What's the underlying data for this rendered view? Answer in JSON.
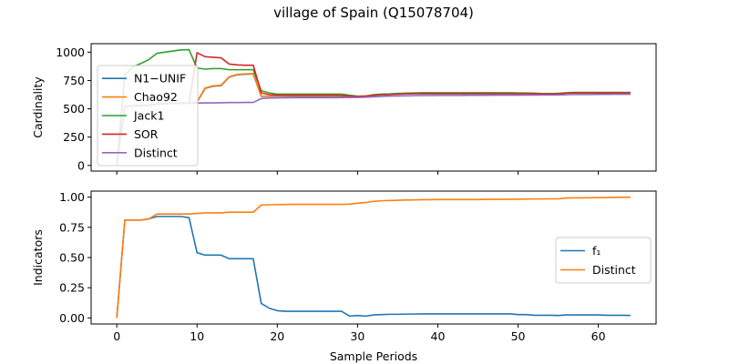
{
  "figure": {
    "title": "village of Spain (Q15078704)"
  },
  "chart_data": [
    {
      "type": "line",
      "ylabel": "Cardinality",
      "xlabel": "",
      "xlim": [
        -3.2,
        67.2
      ],
      "ylim": [
        -50,
        1075
      ],
      "xticks": [
        0,
        10,
        20,
        30,
        40,
        50,
        60
      ],
      "yticks": [
        0,
        250,
        500,
        750,
        1000
      ],
      "ytick_labels": [
        "0",
        "250",
        "500",
        "750",
        "1000"
      ],
      "legend_position": "upper-left",
      "x": [
        0,
        1,
        2,
        3,
        4,
        5,
        6,
        7,
        8,
        9,
        10,
        11,
        12,
        13,
        14,
        15,
        16,
        17,
        18,
        19,
        20,
        21,
        22,
        23,
        24,
        25,
        26,
        27,
        28,
        29,
        30,
        31,
        32,
        33,
        34,
        35,
        36,
        37,
        38,
        39,
        40,
        41,
        42,
        43,
        44,
        45,
        46,
        47,
        48,
        49,
        50,
        51,
        52,
        53,
        54,
        55,
        56,
        57,
        58,
        59,
        60,
        61,
        62,
        63,
        64
      ],
      "series": [
        {
          "name": "N1−UNIF",
          "color": "#1f77b4",
          "values": [
            2,
            520,
            525,
            528,
            530,
            540,
            545,
            548,
            548,
            550,
            560,
            680,
            700,
            705,
            780,
            800,
            805,
            808,
            610,
            610,
            612,
            612,
            612,
            612,
            612,
            612,
            612,
            612,
            612,
            608,
            608,
            612,
            620,
            622,
            625,
            628,
            630,
            632,
            632,
            632,
            632,
            632,
            632,
            632,
            632,
            632,
            632,
            632,
            632,
            632,
            632,
            632,
            632,
            632,
            632,
            635,
            638,
            640,
            640,
            640,
            640,
            640,
            640,
            640,
            640
          ]
        },
        {
          "name": "Chao92",
          "color": "#ff7f0e",
          "values": [
            2,
            522,
            527,
            530,
            532,
            542,
            547,
            550,
            550,
            552,
            562,
            683,
            703,
            708,
            783,
            803,
            808,
            810,
            612,
            612,
            614,
            614,
            614,
            614,
            614,
            614,
            614,
            614,
            614,
            610,
            610,
            614,
            622,
            624,
            627,
            630,
            632,
            634,
            634,
            634,
            634,
            634,
            634,
            634,
            634,
            634,
            634,
            634,
            634,
            634,
            634,
            634,
            634,
            634,
            634,
            637,
            640,
            642,
            642,
            642,
            642,
            642,
            642,
            642,
            642
          ]
        },
        {
          "name": "Jack1",
          "color": "#2ca02c",
          "values": [
            2,
            800,
            870,
            900,
            935,
            990,
            1000,
            1010,
            1020,
            1022,
            860,
            850,
            855,
            855,
            845,
            845,
            845,
            845,
            660,
            640,
            630,
            630,
            630,
            630,
            630,
            630,
            630,
            630,
            630,
            620,
            612,
            612,
            625,
            630,
            632,
            636,
            638,
            640,
            642,
            642,
            642,
            642,
            642,
            642,
            642,
            642,
            642,
            642,
            642,
            642,
            640,
            640,
            638,
            635,
            635,
            636,
            642,
            645,
            645,
            645,
            645,
            645,
            645,
            645,
            645
          ]
        },
        {
          "name": "SOR",
          "color": "#d62728",
          "values": [
            2,
            520,
            525,
            528,
            530,
            540,
            545,
            548,
            548,
            550,
            995,
            960,
            955,
            950,
            895,
            888,
            885,
            885,
            640,
            625,
            620,
            620,
            620,
            620,
            620,
            620,
            620,
            620,
            618,
            612,
            610,
            612,
            620,
            624,
            626,
            630,
            634,
            635,
            635,
            635,
            635,
            635,
            635,
            635,
            635,
            635,
            635,
            635,
            635,
            635,
            635,
            635,
            635,
            632,
            632,
            632,
            638,
            640,
            640,
            640,
            640,
            640,
            640,
            640,
            640
          ]
        },
        {
          "name": "Distinct",
          "color": "#9467bd",
          "values": [
            2,
            520,
            525,
            528,
            530,
            540,
            545,
            548,
            548,
            550,
            550,
            552,
            552,
            553,
            555,
            555,
            556,
            556,
            590,
            595,
            596,
            597,
            598,
            598,
            598,
            598,
            598,
            598,
            599,
            600,
            600,
            602,
            606,
            609,
            612,
            613,
            614,
            616,
            617,
            617,
            618,
            618,
            618,
            618,
            619,
            619,
            619,
            620,
            620,
            620,
            620,
            621,
            621,
            622,
            622,
            622,
            624,
            626,
            626,
            626,
            627,
            627,
            628,
            628,
            628
          ]
        }
      ]
    },
    {
      "type": "line",
      "ylabel": "Indicators",
      "xlabel": "Sample Periods",
      "xlim": [
        -3.2,
        67.2
      ],
      "ylim": [
        -0.05,
        1.05
      ],
      "xticks": [
        0,
        10,
        20,
        30,
        40,
        50,
        60
      ],
      "yticks": [
        0,
        0.25,
        0.5,
        0.75,
        1.0
      ],
      "ytick_labels": [
        "0.00",
        "0.25",
        "0.50",
        "0.75",
        "1.00"
      ],
      "xtick_labels": [
        "0",
        "10",
        "20",
        "30",
        "40",
        "50",
        "60"
      ],
      "legend_position": "center-right",
      "x": [
        0,
        1,
        2,
        3,
        4,
        5,
        6,
        7,
        8,
        9,
        10,
        11,
        12,
        13,
        14,
        15,
        16,
        17,
        18,
        19,
        20,
        21,
        22,
        23,
        24,
        25,
        26,
        27,
        28,
        29,
        30,
        31,
        32,
        33,
        34,
        35,
        36,
        37,
        38,
        39,
        40,
        41,
        42,
        43,
        44,
        45,
        46,
        47,
        48,
        49,
        50,
        51,
        52,
        53,
        54,
        55,
        56,
        57,
        58,
        59,
        60,
        61,
        62,
        63,
        64
      ],
      "series": [
        {
          "name": "f₁",
          "color": "#1f77b4",
          "values": [
            0.0,
            0.81,
            0.81,
            0.81,
            0.82,
            0.84,
            0.84,
            0.84,
            0.84,
            0.83,
            0.54,
            0.52,
            0.52,
            0.52,
            0.49,
            0.49,
            0.49,
            0.49,
            0.12,
            0.08,
            0.06,
            0.055,
            0.055,
            0.055,
            0.055,
            0.055,
            0.055,
            0.055,
            0.055,
            0.015,
            0.02,
            0.015,
            0.025,
            0.028,
            0.03,
            0.03,
            0.032,
            0.032,
            0.033,
            0.033,
            0.033,
            0.033,
            0.033,
            0.033,
            0.033,
            0.033,
            0.033,
            0.033,
            0.033,
            0.033,
            0.028,
            0.028,
            0.022,
            0.022,
            0.022,
            0.02,
            0.025,
            0.025,
            0.025,
            0.025,
            0.025,
            0.022,
            0.022,
            0.022,
            0.02
          ]
        },
        {
          "name": "Distinct",
          "color": "#ff7f0e",
          "values": [
            0.0,
            0.81,
            0.81,
            0.81,
            0.82,
            0.86,
            0.86,
            0.86,
            0.86,
            0.86,
            0.865,
            0.87,
            0.87,
            0.87,
            0.875,
            0.875,
            0.875,
            0.875,
            0.935,
            0.937,
            0.938,
            0.939,
            0.94,
            0.94,
            0.94,
            0.94,
            0.94,
            0.94,
            0.94,
            0.942,
            0.95,
            0.955,
            0.965,
            0.97,
            0.972,
            0.974,
            0.976,
            0.977,
            0.979,
            0.979,
            0.98,
            0.98,
            0.98,
            0.98,
            0.98,
            0.98,
            0.982,
            0.982,
            0.982,
            0.983,
            0.983,
            0.984,
            0.985,
            0.985,
            0.986,
            0.986,
            0.993,
            0.994,
            0.994,
            0.995,
            0.996,
            0.997,
            0.998,
            0.999,
            1.0
          ]
        }
      ]
    }
  ]
}
